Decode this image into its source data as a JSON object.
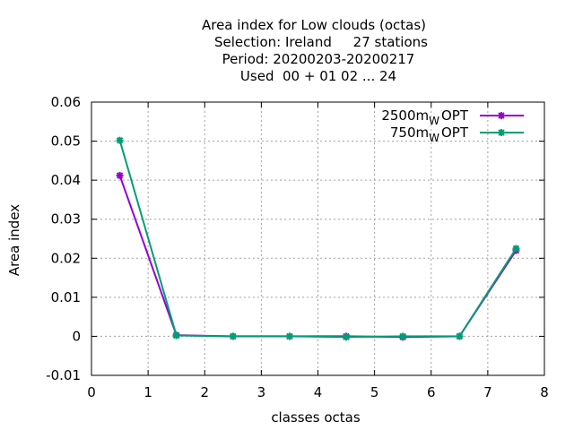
{
  "chart_data": {
    "type": "line",
    "title_lines": [
      "Area index  for Low clouds (octas)",
      "Selection: Ireland     27 stations",
      "Period: 20200203-20200217",
      "Used  00 + 01 02 ... 24"
    ],
    "xlabel": "classes octas",
    "ylabel": "Area index",
    "xlim": [
      0,
      8
    ],
    "ylim": [
      -0.01,
      0.06
    ],
    "xticks": [
      0,
      1,
      2,
      3,
      4,
      5,
      6,
      7,
      8
    ],
    "yticks": [
      -0.01,
      0,
      0.01,
      0.02,
      0.03,
      0.04,
      0.05,
      0.06
    ],
    "ytick_labels": [
      "-0.01",
      "0",
      "0.01",
      "0.02",
      "0.03",
      "0.04",
      "0.05",
      "0.06"
    ],
    "grid": true,
    "legend_position": "top-right",
    "series": [
      {
        "name": "2500m",
        "name_sub": "W",
        "name_suffix": "OPT",
        "color": "#9400d3",
        "x": [
          0.5,
          1.5,
          2.5,
          3.5,
          4.5,
          5.5,
          6.5,
          7.5
        ],
        "y": [
          0.0412,
          0.0003,
          0.0,
          0.0,
          0.0,
          -0.0002,
          0.0,
          0.022
        ]
      },
      {
        "name": "750m",
        "name_sub": "W",
        "name_suffix": "OPT",
        "color": "#009e73",
        "x": [
          0.5,
          1.5,
          2.5,
          3.5,
          4.5,
          5.5,
          6.5,
          7.5
        ],
        "y": [
          0.0502,
          0.0002,
          0.0,
          0.0,
          -0.0002,
          0.0,
          0.0,
          0.0225
        ]
      }
    ]
  }
}
